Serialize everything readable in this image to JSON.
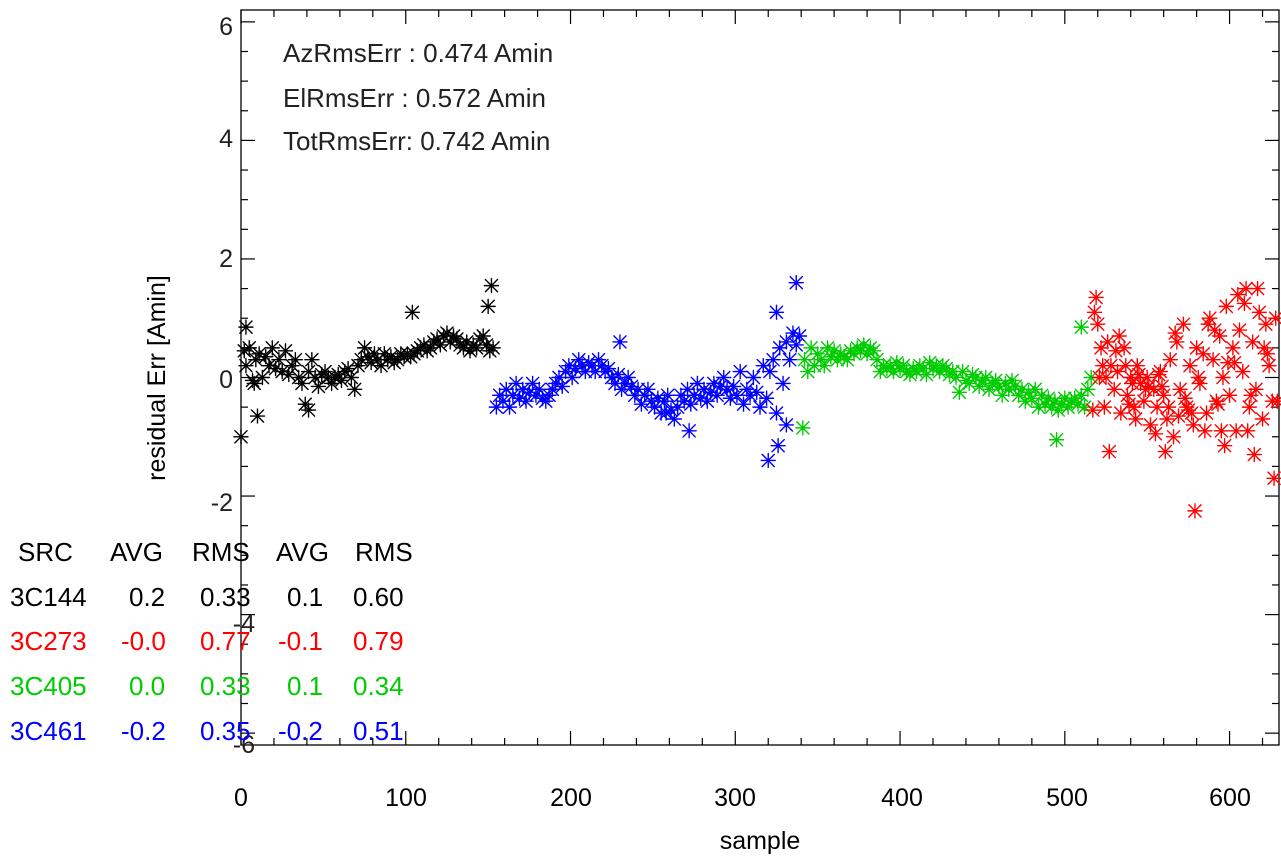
{
  "chart_data": {
    "type": "scatter",
    "title": "",
    "xlabel": "sample",
    "ylabel": "residual Err [Amin]",
    "xlim": [
      0,
      630
    ],
    "ylim": [
      -6.2,
      6.2
    ],
    "xticks": [
      "0",
      "100",
      "200",
      "300",
      "400",
      "500",
      "600"
    ],
    "yticks": [
      "6",
      "4",
      "2",
      "0",
      "-2",
      "-4",
      "-6"
    ],
    "xtick_values": [
      0,
      100,
      200,
      300,
      400,
      500,
      600
    ],
    "ytick_values": [
      6,
      4,
      2,
      0,
      -2,
      -4,
      -6
    ],
    "marker": "asterisk",
    "rms_lines": [
      "AzRmsErr :  0.474 Amin",
      "ElRmsErr :  0.572 Amin",
      "TotRmsErr:  0.742 Amin"
    ],
    "summary_table": {
      "header": [
        "SRC",
        "AVG",
        "RMS",
        "AVG",
        "RMS"
      ],
      "rows": [
        {
          "src": "3C144",
          "avg1": "0.2",
          "rms1": "0.33",
          "avg2": "0.1",
          "rms2": "0.60",
          "color": "#000000"
        },
        {
          "src": "3C273",
          "avg1": "-0.0",
          "rms1": "0.77",
          "avg2": "-0.1",
          "rms2": "0.79",
          "color": "#ff0000"
        },
        {
          "src": "3C405",
          "avg1": "0.0",
          "rms1": "0.33",
          "avg2": "0.1",
          "rms2": "0.34",
          "color": "#00cc00"
        },
        {
          "src": "3C461",
          "avg1": "-0.2",
          "rms1": "0.35",
          "avg2": "-0.2",
          "rms2": "0.51",
          "color": "#0000ff"
        }
      ]
    },
    "series": [
      {
        "color": "#000000",
        "x": [
          0,
          2,
          3,
          5,
          7,
          9,
          11,
          13,
          15,
          17,
          19,
          21,
          23,
          25,
          27,
          29,
          31,
          33,
          35,
          37,
          39,
          41,
          43,
          45,
          47,
          49,
          51,
          53,
          55,
          57,
          59,
          61,
          63,
          65,
          67,
          69,
          71,
          73,
          75,
          77,
          79,
          81,
          83,
          85,
          87,
          89,
          91,
          93,
          95,
          97,
          99,
          101,
          103,
          105,
          107,
          109,
          111,
          113,
          115,
          117,
          119,
          121,
          123,
          125,
          127,
          129,
          131,
          133,
          135,
          137,
          139,
          141,
          143,
          145,
          147,
          149,
          151,
          153,
          3,
          8,
          10,
          41,
          104,
          150,
          152
        ],
        "y": [
          -1.0,
          0.45,
          0.2,
          0.5,
          -0.05,
          0.3,
          0.4,
          0.0,
          0.35,
          0.2,
          0.5,
          0.15,
          0.3,
          0.1,
          0.45,
          0.05,
          0.2,
          0.3,
          0.0,
          -0.1,
          -0.45,
          0.1,
          0.3,
          0.0,
          -0.15,
          0.05,
          0.1,
          0.0,
          -0.1,
          0.0,
          0.05,
          -0.05,
          0.1,
          0.15,
          0.0,
          -0.2,
          0.2,
          0.3,
          0.5,
          0.35,
          0.25,
          0.4,
          0.3,
          0.2,
          0.4,
          0.3,
          0.35,
          0.25,
          0.3,
          0.4,
          0.35,
          0.4,
          0.35,
          0.4,
          0.45,
          0.5,
          0.55,
          0.45,
          0.5,
          0.6,
          0.65,
          0.55,
          0.7,
          0.75,
          0.6,
          0.7,
          0.65,
          0.55,
          0.5,
          0.6,
          0.45,
          0.55,
          0.5,
          0.65,
          0.7,
          0.55,
          0.45,
          0.5,
          0.85,
          -0.1,
          -0.65,
          -0.55,
          1.1,
          1.2,
          1.55
        ]
      },
      {
        "color": "#0000ff",
        "x": [
          155,
          157,
          159,
          161,
          163,
          165,
          167,
          169,
          171,
          173,
          175,
          177,
          179,
          181,
          183,
          185,
          187,
          189,
          191,
          193,
          195,
          197,
          199,
          201,
          203,
          205,
          207,
          209,
          211,
          213,
          215,
          217,
          219,
          221,
          223,
          225,
          227,
          229,
          231,
          233,
          235,
          237,
          239,
          241,
          243,
          245,
          247,
          249,
          251,
          253,
          255,
          257,
          259,
          261,
          263,
          265,
          267,
          269,
          271,
          273,
          275,
          277,
          279,
          281,
          283,
          285,
          287,
          289,
          291,
          293,
          295,
          297,
          299,
          301,
          303,
          305,
          307,
          309,
          311,
          313,
          315,
          317,
          319,
          321,
          323,
          325,
          327,
          329,
          331,
          333,
          335,
          337,
          339,
          325,
          331,
          337,
          320,
          326,
          230,
          258,
          272
        ],
        "y": [
          -0.5,
          -0.3,
          -0.4,
          -0.2,
          -0.5,
          -0.3,
          -0.1,
          -0.35,
          -0.2,
          -0.4,
          -0.25,
          -0.1,
          -0.3,
          -0.2,
          -0.35,
          -0.4,
          -0.3,
          -0.2,
          -0.1,
          0.0,
          -0.15,
          0.1,
          0.2,
          0.0,
          0.15,
          0.3,
          0.2,
          0.1,
          0.25,
          0.2,
          0.1,
          0.3,
          0.2,
          0.1,
          0.15,
          0.0,
          -0.1,
          0.05,
          -0.2,
          -0.1,
          0.0,
          -0.15,
          -0.3,
          -0.2,
          -0.45,
          -0.3,
          -0.2,
          -0.4,
          -0.5,
          -0.35,
          -0.6,
          -0.4,
          -0.3,
          -0.55,
          -0.7,
          -0.5,
          -0.3,
          -0.4,
          -0.2,
          -0.45,
          -0.3,
          -0.1,
          -0.35,
          -0.2,
          -0.4,
          -0.25,
          -0.1,
          -0.3,
          -0.15,
          0.0,
          -0.2,
          -0.35,
          -0.15,
          -0.3,
          0.1,
          -0.45,
          -0.2,
          -0.3,
          0.0,
          -0.25,
          -0.5,
          0.2,
          -0.35,
          0.1,
          0.3,
          -0.6,
          0.5,
          -0.1,
          0.6,
          0.3,
          0.75,
          0.55,
          0.7,
          1.1,
          -0.8,
          1.6,
          -1.4,
          -1.15,
          0.6,
          -0.6,
          -0.9
        ]
      },
      {
        "color": "#00cc00",
        "x": [
          342,
          344,
          346,
          348,
          350,
          352,
          354,
          356,
          358,
          360,
          362,
          364,
          366,
          368,
          370,
          372,
          374,
          376,
          378,
          380,
          382,
          384,
          386,
          388,
          390,
          392,
          394,
          396,
          398,
          400,
          402,
          404,
          406,
          408,
          410,
          412,
          414,
          416,
          418,
          420,
          422,
          424,
          426,
          428,
          430,
          432,
          434,
          436,
          438,
          440,
          442,
          444,
          446,
          448,
          450,
          452,
          454,
          456,
          458,
          460,
          462,
          464,
          466,
          468,
          470,
          472,
          474,
          476,
          478,
          480,
          482,
          484,
          486,
          488,
          490,
          492,
          494,
          496,
          498,
          500,
          502,
          504,
          506,
          508,
          510,
          512,
          514,
          516,
          341,
          510,
          495
        ],
        "y": [
          0.3,
          0.1,
          0.5,
          0.2,
          0.4,
          0.3,
          0.2,
          0.5,
          0.35,
          0.45,
          0.3,
          0.4,
          0.35,
          0.3,
          0.45,
          0.4,
          0.5,
          0.45,
          0.55,
          0.4,
          0.5,
          0.45,
          0.3,
          0.1,
          0.2,
          0.15,
          0.2,
          0.1,
          0.25,
          0.15,
          0.2,
          0.1,
          0.05,
          0.15,
          0.1,
          0.2,
          0.15,
          0.05,
          0.25,
          0.15,
          0.2,
          0.1,
          0.2,
          0.15,
          0.05,
          0.1,
          0.0,
          -0.25,
          0.1,
          -0.05,
          -0.1,
          0.05,
          0.0,
          -0.15,
          -0.05,
          0.0,
          -0.2,
          -0.1,
          -0.05,
          -0.15,
          -0.3,
          -0.1,
          -0.2,
          -0.05,
          -0.15,
          -0.3,
          -0.2,
          -0.4,
          -0.25,
          -0.35,
          -0.2,
          -0.5,
          -0.3,
          -0.45,
          -0.35,
          -0.5,
          -0.4,
          -0.55,
          -0.45,
          -0.35,
          -0.5,
          -0.4,
          -0.35,
          -0.45,
          -0.3,
          -0.5,
          -0.2,
          0.0,
          -0.85,
          0.85,
          -1.05
        ]
      },
      {
        "color": "#ff0000",
        "x": [
          518,
          520,
          522,
          524,
          526,
          528,
          530,
          532,
          534,
          536,
          538,
          540,
          542,
          544,
          546,
          548,
          550,
          552,
          554,
          556,
          558,
          560,
          562,
          564,
          566,
          568,
          570,
          572,
          574,
          576,
          578,
          580,
          582,
          584,
          586,
          588,
          590,
          592,
          594,
          596,
          598,
          600,
          602,
          604,
          606,
          608,
          610,
          612,
          614,
          616,
          618,
          620,
          622,
          624,
          626,
          628,
          517,
          521,
          527,
          533,
          539,
          545,
          551,
          557,
          563,
          569,
          575,
          581,
          587,
          593,
          599,
          605,
          611,
          617,
          623,
          629,
          519,
          525,
          531,
          537,
          543,
          549,
          555,
          561,
          567,
          573,
          579,
          585,
          591,
          597,
          603,
          609,
          615,
          621,
          627,
          523,
          541,
          559,
          577,
          595,
          613
        ],
        "y": [
          1.1,
          0.9,
          0.5,
          -0.5,
          0.6,
          0.2,
          -0.2,
          0.1,
          -0.6,
          0.5,
          -0.3,
          0.0,
          -0.5,
          0.2,
          -0.1,
          -0.4,
          0.0,
          -0.8,
          -0.2,
          -0.5,
          0.1,
          -0.3,
          -0.7,
          0.3,
          -1.0,
          0.6,
          -0.2,
          0.9,
          -0.5,
          0.2,
          -0.8,
          0.5,
          -0.1,
          0.4,
          -0.6,
          1.0,
          0.3,
          -0.4,
          0.7,
          0.0,
          1.2,
          -0.3,
          0.5,
          -0.9,
          0.8,
          0.1,
          1.5,
          -0.5,
          0.6,
          -0.2,
          1.1,
          -0.7,
          0.9,
          0.2,
          -0.4,
          1.0,
          -0.55,
          0.0,
          -1.25,
          0.7,
          -0.45,
          0.05,
          -0.15,
          0.05,
          -0.5,
          -0.65,
          -0.55,
          0.0,
          0.9,
          -0.45,
          0.25,
          1.4,
          -0.9,
          1.5,
          0.4,
          -0.4,
          1.35,
          0.0,
          0.45,
          0.2,
          -0.7,
          -0.2,
          -0.95,
          -1.25,
          0.75,
          -0.35,
          -2.25,
          -0.9,
          0.8,
          -1.15,
          0.25,
          1.25,
          -1.3,
          0.5,
          -1.7,
          0.2,
          -0.1,
          -0.15,
          -0.6,
          -0.9,
          -0.3
        ]
      }
    ]
  }
}
